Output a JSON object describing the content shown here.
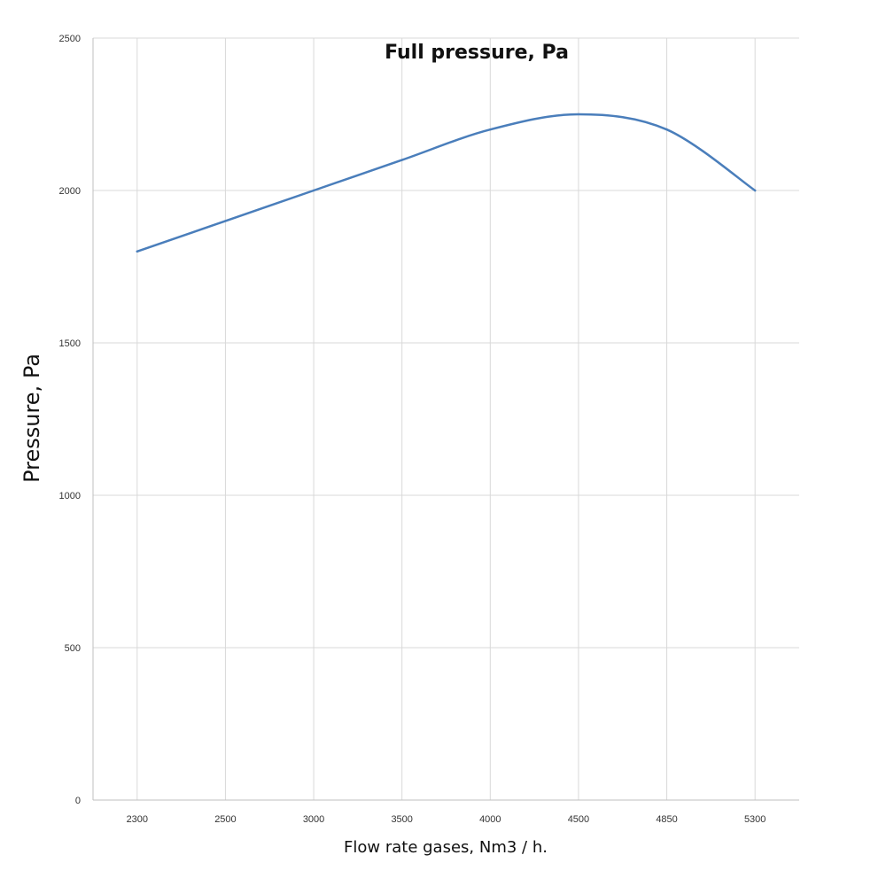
{
  "chart_data": {
    "type": "line",
    "title": "Full pressure, Pa",
    "xlabel": "Flow rate gases, Nm3 / h.",
    "ylabel": "Pressure, Pa",
    "categories": [
      "2300",
      "2500",
      "3000",
      "3500",
      "4000",
      "4500",
      "4850",
      "5300"
    ],
    "series": [
      {
        "name": "Full pressure, Pa",
        "values": [
          1800,
          1900,
          2000,
          2100,
          2200,
          2250,
          2200,
          2000
        ]
      }
    ],
    "ylim": [
      0,
      2500
    ],
    "yticks": [
      0,
      500,
      1000,
      1500,
      2000,
      2500
    ],
    "grid": true,
    "legend": "none",
    "colors": {
      "line": "#4a7ebb",
      "grid": "#d9d9d9",
      "axis": "#bfbfbf"
    }
  }
}
